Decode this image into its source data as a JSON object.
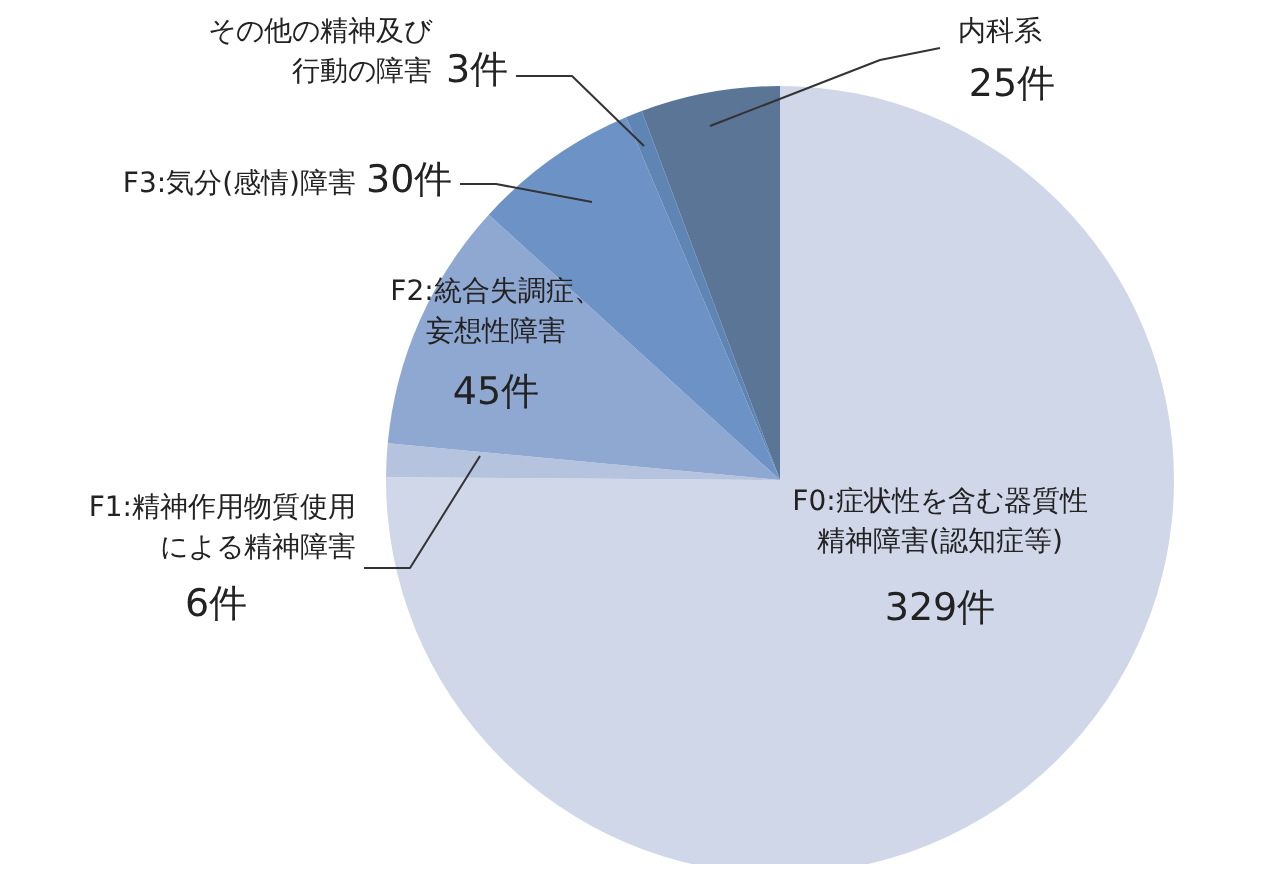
{
  "chart_data": {
    "type": "pie",
    "categories": [
      "F0:症状性を含む器質性精神障害(認知症等)",
      "F1:精神作用物質使用による精神障害",
      "F2:統合失調症、妄想性障害",
      "F3:気分(感情)障害",
      "その他の精神及び行動の障害",
      "内科系"
    ],
    "values": [
      329,
      6,
      45,
      30,
      3,
      25
    ],
    "colors": [
      "#cfd7e8",
      "#b5c3df",
      "#8fa8d2",
      "#6d93c6",
      "#5f85b5",
      "#5b7597"
    ],
    "value_labels": [
      "329件",
      "6件",
      "45件",
      "30件",
      "3件",
      "25件"
    ]
  }
}
